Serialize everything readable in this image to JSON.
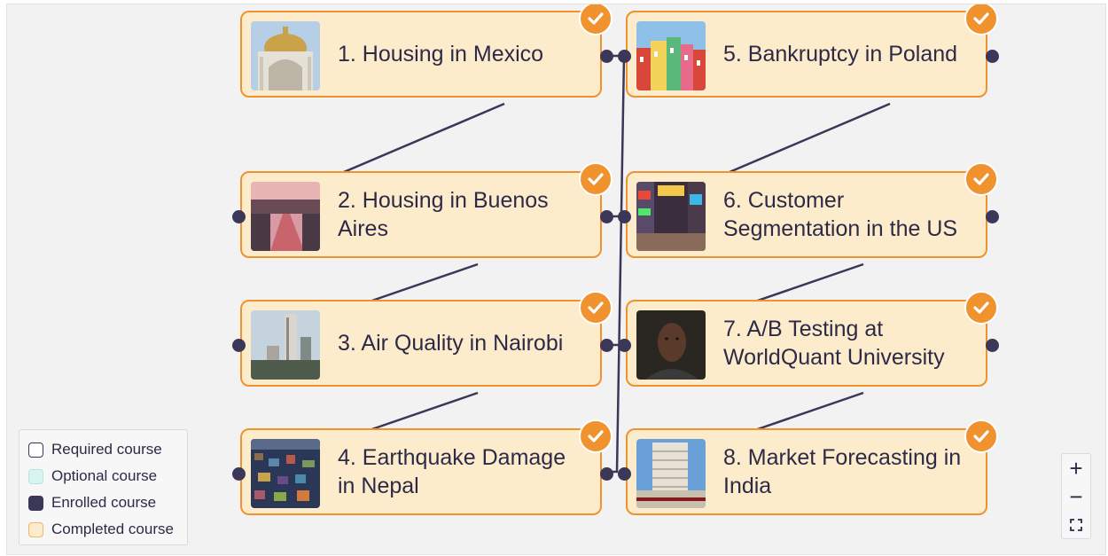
{
  "courses": [
    {
      "title": "1. Housing in Mexico",
      "status": "completed",
      "image": "mexico-palace-photo"
    },
    {
      "title": "2. Housing in Buenos Aires",
      "status": "completed",
      "image": "buenos-aires-canal-photo"
    },
    {
      "title": "3. Air Quality in Nairobi",
      "status": "completed",
      "image": "nairobi-skyline-photo"
    },
    {
      "title": "4. Earthquake Damage in Nepal",
      "status": "completed",
      "image": "nepal-hillside-photo"
    },
    {
      "title": "5. Bankruptcy in Poland",
      "status": "completed",
      "image": "poland-houses-photo"
    },
    {
      "title": "6. Customer Segmentation in the US",
      "status": "completed",
      "image": "times-square-photo"
    },
    {
      "title": "7. A/B Testing at WorldQuant University",
      "status": "completed",
      "image": "student-portrait-photo"
    },
    {
      "title": "8. Market Forecasting in India",
      "status": "completed",
      "image": "bombay-stock-exchange-photo"
    }
  ],
  "legend": [
    {
      "label": "Required course",
      "color": "#ffffff"
    },
    {
      "label": "Optional course",
      "color": "#d8f3f1"
    },
    {
      "label": "Enrolled course",
      "color": "#3b3759"
    },
    {
      "label": "Completed course",
      "color": "#fdeccc"
    }
  ],
  "zoom_controls": {
    "zoom_in": "+",
    "zoom_out": "−",
    "fit_icon": "fit-view-icon"
  },
  "colors": {
    "card_fill": "#fdeccc",
    "card_border": "#f0922e",
    "enrolled": "#3b3759",
    "text": "#2d2a48",
    "canvas": "#f2f2f2"
  }
}
